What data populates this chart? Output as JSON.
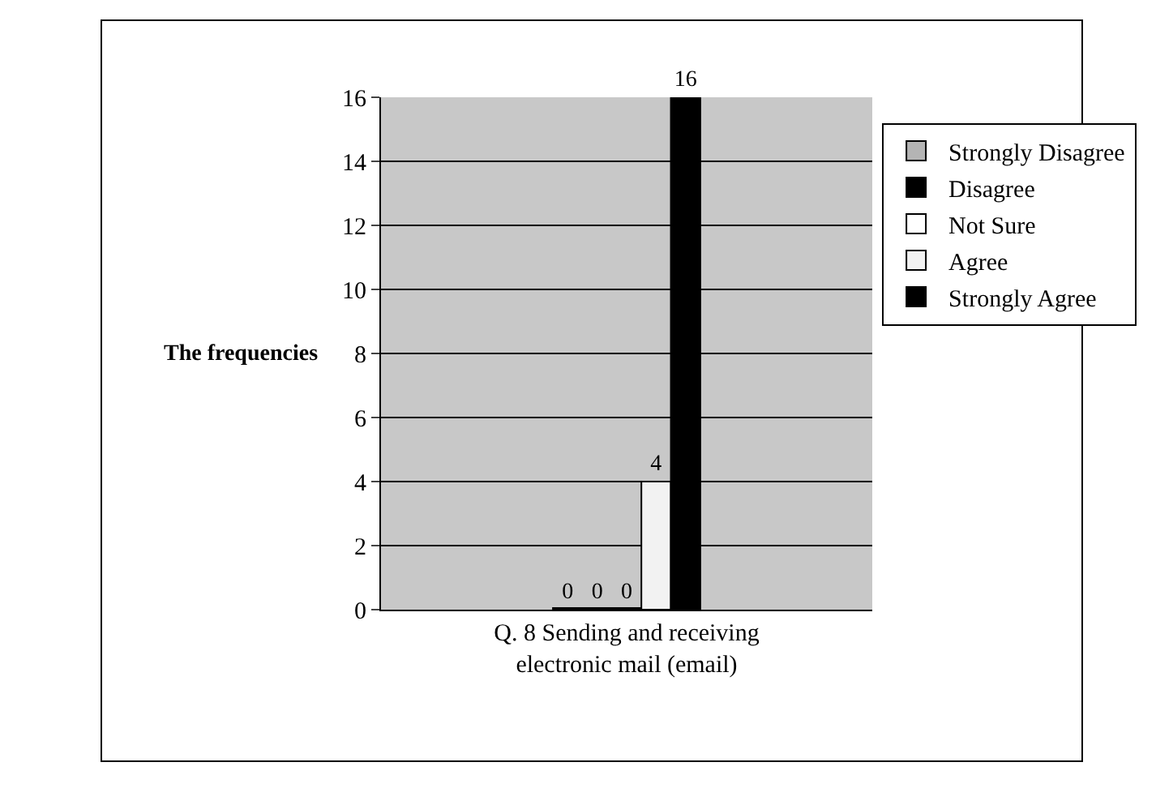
{
  "chart_data": {
    "type": "bar",
    "categories": [
      "Q. 8 Sending and receiving electronic mail (email)"
    ],
    "ylabel": "The frequencies",
    "series": [
      {
        "name": "Strongly Disagree",
        "color": "#b4b4b4",
        "values": [
          0
        ]
      },
      {
        "name": "Disagree",
        "color": "#000000",
        "values": [
          0
        ]
      },
      {
        "name": "Not Sure",
        "color": "#ffffff",
        "values": [
          0
        ]
      },
      {
        "name": "Agree",
        "color": "#f2f2f2",
        "values": [
          4
        ]
      },
      {
        "name": "Strongly Agree",
        "color": "#000000",
        "values": [
          16
        ]
      }
    ],
    "ylim": [
      0,
      16
    ],
    "yticks": [
      0,
      2,
      4,
      6,
      8,
      10,
      12,
      14,
      16
    ],
    "grid": "y",
    "legend": "right",
    "data_labels": true
  }
}
